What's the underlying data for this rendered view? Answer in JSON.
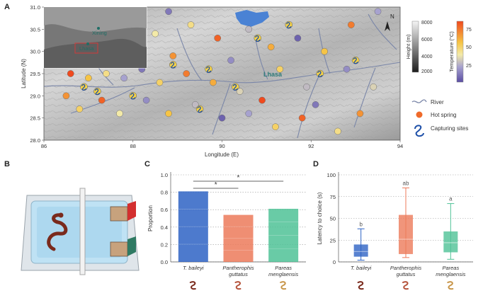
{
  "panels": {
    "a": "A",
    "b": "B",
    "c": "C",
    "d": "D"
  },
  "map": {
    "xlabel": "Longitude (E)",
    "ylabel": "Latitude (N)",
    "x_ticks": [
      "86",
      "88",
      "90",
      "92",
      "94"
    ],
    "y_ticks": [
      "28.0",
      "28.5",
      "29.0",
      "29.5",
      "30.0",
      "30.5",
      "31.0"
    ],
    "xlim": [
      86,
      94
    ],
    "ylim": [
      28.0,
      31.0
    ],
    "city_label": "Lhasa",
    "north_label": "N",
    "inset": {
      "city_1": "Xining",
      "city_2": "Lhasa"
    },
    "height_legend": {
      "title": "Height (m)",
      "ticks": [
        "8000",
        "6000",
        "4000",
        "2000"
      ]
    },
    "temp_legend": {
      "title": "Temperature (°C)",
      "ticks": [
        "75",
        "50",
        "25"
      ]
    },
    "legend_items": {
      "river": "River",
      "hot_spring": "Hot spring",
      "capturing": "Capturing sites"
    },
    "colors": {
      "river": "#7a86a8",
      "hot_spring": "#ef6a2a",
      "capture_icon": "#1d4fa8",
      "lake": "#4a82d4"
    },
    "hot_springs": [
      {
        "lon": 86.6,
        "lat": 29.5,
        "t": 85
      },
      {
        "lon": 87.0,
        "lat": 29.4,
        "t": 60
      },
      {
        "lon": 87.4,
        "lat": 29.5,
        "t": 50
      },
      {
        "lon": 87.8,
        "lat": 29.4,
        "t": 30
      },
      {
        "lon": 88.2,
        "lat": 29.6,
        "t": 20
      },
      {
        "lon": 88.6,
        "lat": 29.3,
        "t": 55
      },
      {
        "lon": 89.2,
        "lat": 29.5,
        "t": 75
      },
      {
        "lon": 89.8,
        "lat": 29.3,
        "t": 65
      },
      {
        "lon": 90.4,
        "lat": 29.1,
        "t": 40
      },
      {
        "lon": 86.5,
        "lat": 29.0,
        "t": 70
      },
      {
        "lon": 86.8,
        "lat": 28.7,
        "t": 55
      },
      {
        "lon": 87.3,
        "lat": 28.9,
        "t": 80
      },
      {
        "lon": 87.7,
        "lat": 28.6,
        "t": 45
      },
      {
        "lon": 88.3,
        "lat": 28.9,
        "t": 25
      },
      {
        "lon": 88.8,
        "lat": 28.6,
        "t": 60
      },
      {
        "lon": 89.4,
        "lat": 28.8,
        "t": 35
      },
      {
        "lon": 90.0,
        "lat": 28.5,
        "t": 15
      },
      {
        "lon": 90.6,
        "lat": 28.6,
        "t": 30
      },
      {
        "lon": 91.2,
        "lat": 28.3,
        "t": 55
      },
      {
        "lon": 91.8,
        "lat": 28.5,
        "t": 80
      },
      {
        "lon": 92.1,
        "lat": 28.8,
        "t": 20
      },
      {
        "lon": 92.6,
        "lat": 28.2,
        "t": 50
      },
      {
        "lon": 93.1,
        "lat": 28.6,
        "t": 70
      },
      {
        "lon": 93.4,
        "lat": 29.2,
        "t": 40
      },
      {
        "lon": 92.8,
        "lat": 29.6,
        "t": 25
      },
      {
        "lon": 92.3,
        "lat": 30.0,
        "t": 60
      },
      {
        "lon": 91.7,
        "lat": 30.3,
        "t": 15
      },
      {
        "lon": 91.1,
        "lat": 30.1,
        "t": 65
      },
      {
        "lon": 90.6,
        "lat": 30.5,
        "t": 35
      },
      {
        "lon": 89.9,
        "lat": 30.3,
        "t": 80
      },
      {
        "lon": 89.3,
        "lat": 30.6,
        "t": 50
      },
      {
        "lon": 88.8,
        "lat": 30.9,
        "t": 20
      },
      {
        "lon": 88.5,
        "lat": 30.4,
        "t": 45
      },
      {
        "lon": 88.9,
        "lat": 29.9,
        "t": 70
      },
      {
        "lon": 90.2,
        "lat": 29.8,
        "t": 25
      },
      {
        "lon": 91.3,
        "lat": 29.6,
        "t": 55
      },
      {
        "lon": 91.9,
        "lat": 29.2,
        "t": 35
      },
      {
        "lon": 92.9,
        "lat": 30.6,
        "t": 75
      },
      {
        "lon": 93.5,
        "lat": 30.9,
        "t": 30
      },
      {
        "lon": 90.9,
        "lat": 28.9,
        "t": 85
      }
    ],
    "capture_sites": [
      {
        "lon": 87.2,
        "lat": 29.1
      },
      {
        "lon": 88.0,
        "lat": 29.0
      },
      {
        "lon": 88.9,
        "lat": 29.7
      },
      {
        "lon": 89.7,
        "lat": 29.6
      },
      {
        "lon": 90.3,
        "lat": 29.2
      },
      {
        "lon": 90.8,
        "lat": 30.3
      },
      {
        "lon": 91.5,
        "lat": 30.6
      },
      {
        "lon": 92.2,
        "lat": 29.5
      },
      {
        "lon": 93.0,
        "lat": 29.8
      },
      {
        "lon": 89.5,
        "lat": 28.7
      },
      {
        "lon": 86.9,
        "lat": 29.2
      }
    ]
  },
  "chart_data": [
    {
      "type": "bar",
      "panel": "C",
      "ylabel": "Proportion",
      "categories": [
        "T. baileyi",
        "Pantherophis guttatus",
        "Pareas menglaensis"
      ],
      "values": [
        0.81,
        0.54,
        0.61
      ],
      "colors": [
        "#2e63c4",
        "#ec7a5a",
        "#4fc296"
      ],
      "ylim": [
        0,
        1.0
      ],
      "yticks": [
        "0.0",
        "0.2",
        "0.4",
        "0.6",
        "0.8",
        "1.0"
      ],
      "significance": [
        {
          "from": "T. baileyi",
          "to": "Pantherophis guttatus",
          "label": "*"
        },
        {
          "from": "T. baileyi",
          "to": "Pareas menglaensis",
          "label": "*"
        }
      ],
      "grid": "horizontal dotted"
    },
    {
      "type": "box",
      "panel": "D",
      "ylabel": "Latency to choice (s)",
      "categories": [
        "T. baileyi",
        "Pantherophis guttatus",
        "Pareas menglaensis"
      ],
      "boxes": [
        {
          "min": 2,
          "q1": 6,
          "median": 12,
          "q3": 20,
          "max": 38,
          "letter": "b"
        },
        {
          "min": 5,
          "q1": 9,
          "median": 26,
          "q3": 54,
          "max": 85,
          "letter": "ab"
        },
        {
          "min": 3,
          "q1": 11,
          "median": 22,
          "q3": 35,
          "max": 67,
          "letter": "a"
        }
      ],
      "colors": [
        "#2e63c4",
        "#ec7a5a",
        "#4fc296"
      ],
      "ylim": [
        0,
        100
      ],
      "yticks": [
        "0",
        "25",
        "50",
        "75",
        "100"
      ],
      "grid": "horizontal dotted"
    }
  ]
}
